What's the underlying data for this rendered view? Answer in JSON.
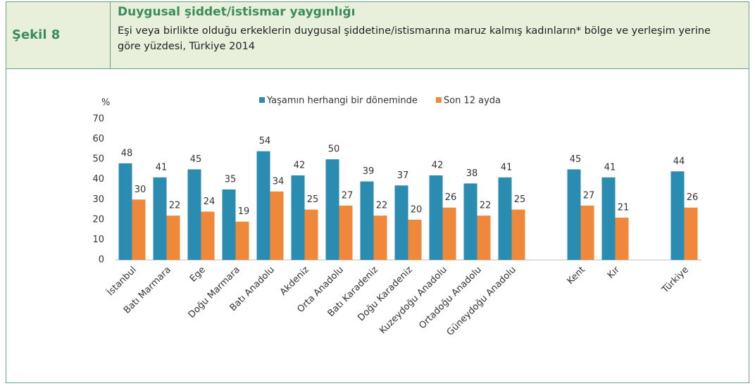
{
  "header": {
    "label": "Şekil 8",
    "title": "Duygusal şiddet/istismar yaygınlığı",
    "subtitle": "Eşi veya birlikte olduğu erkeklerin duygusal şiddetine/istismarına maruz kalmış kadınların* bölge ve yerleşim yerine göre yüzdesi, Türkiye 2014"
  },
  "chart_data": {
    "type": "bar",
    "y_label": "%",
    "categories": [
      "İstanbul",
      "Batı Marmara",
      "Ege",
      "Doğu Marmara",
      "Batı Anadolu",
      "Akdeniz",
      "Orta Anadolu",
      "Batı Karadeniz",
      "Doğu Karadeniz",
      "Kuzeydoğu Anadolu",
      "Ortadoğu Anadolu",
      "Güneydoğu Anadolu",
      null,
      "Kent",
      "Kır",
      null,
      "Türkiye"
    ],
    "series": [
      {
        "name": "Yaşamın herhangi bir döneminde",
        "color": "#2b8cb1",
        "values": [
          48,
          41,
          45,
          35,
          54,
          42,
          50,
          39,
          37,
          42,
          38,
          41,
          null,
          45,
          41,
          null,
          44
        ]
      },
      {
        "name": "Son 12 ayda",
        "color": "#f0883c",
        "values": [
          30,
          22,
          24,
          19,
          34,
          25,
          27,
          22,
          20,
          26,
          22,
          25,
          null,
          27,
          21,
          null,
          26
        ]
      }
    ],
    "ylim": [
      0,
      70
    ],
    "yticks": [
      0,
      10,
      20,
      30,
      40,
      50,
      60,
      70
    ],
    "grid": false,
    "legend": "top"
  }
}
